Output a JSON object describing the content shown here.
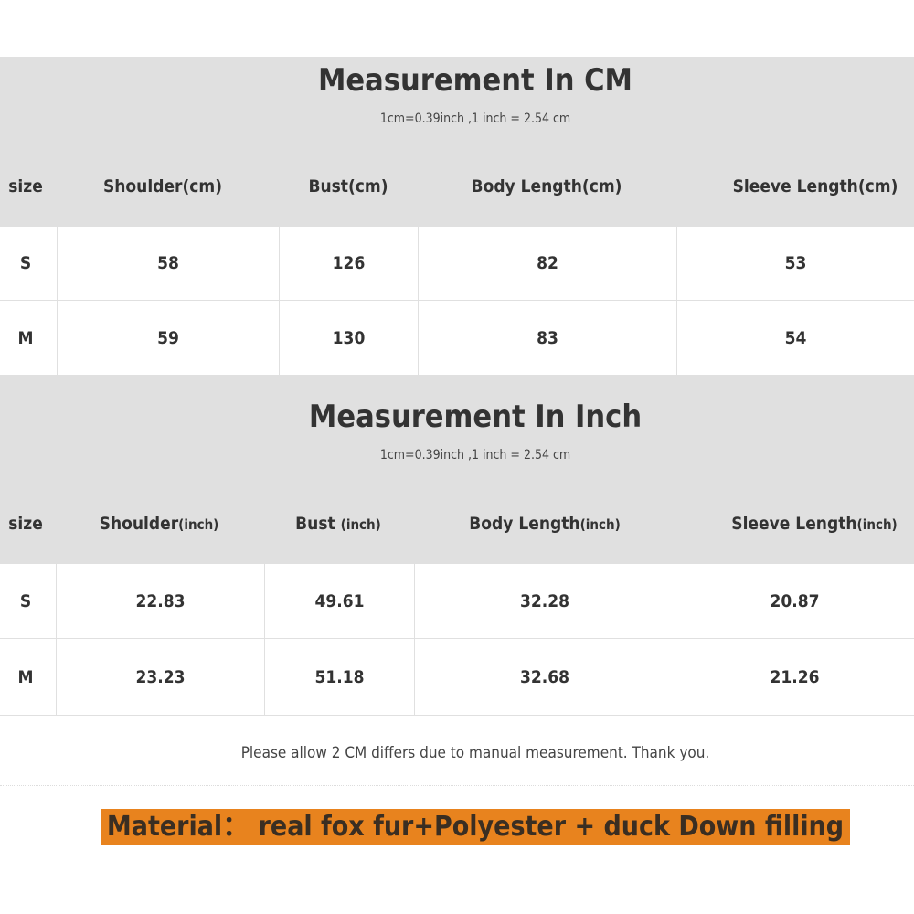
{
  "cm_table": {
    "title": "Measurement In CM",
    "subtitle": "1cm=0.39inch ,1 inch = 2.54 cm",
    "headers": [
      {
        "main": "size",
        "unit": ""
      },
      {
        "main": "Shoulder(cm)",
        "unit": ""
      },
      {
        "main": "Bust(cm)",
        "unit": ""
      },
      {
        "main": "Body Length(cm)",
        "unit": ""
      },
      {
        "main": "Sleeve Length(cm)",
        "unit": ""
      }
    ],
    "rows": [
      [
        "S",
        "58",
        "126",
        "82",
        "53"
      ],
      [
        "M",
        "59",
        "130",
        "83",
        "54"
      ]
    ]
  },
  "inch_table": {
    "title": "Measurement In Inch",
    "subtitle": "1cm=0.39inch ,1 inch = 2.54 cm",
    "headers": [
      {
        "main": "size",
        "unit": ""
      },
      {
        "main": "Shoulder",
        "unit": "(inch)"
      },
      {
        "main": "Bust ",
        "unit": "(inch)"
      },
      {
        "main": "Body Length",
        "unit": "(inch)"
      },
      {
        "main": "Sleeve Length",
        "unit": "(inch)"
      }
    ],
    "rows": [
      [
        "S",
        "22.83",
        "49.61",
        "32.28",
        "20.87"
      ],
      [
        "M",
        "23.23",
        "51.18",
        "32.68",
        "21.26"
      ]
    ]
  },
  "note": "Please allow 2 CM differs due to manual measurement. Thank you.",
  "material": "Material：  real fox fur+Polyester + duck Down filling",
  "colors": {
    "header_bg": "#e0e0e0",
    "material_bg": "#e8831e"
  }
}
